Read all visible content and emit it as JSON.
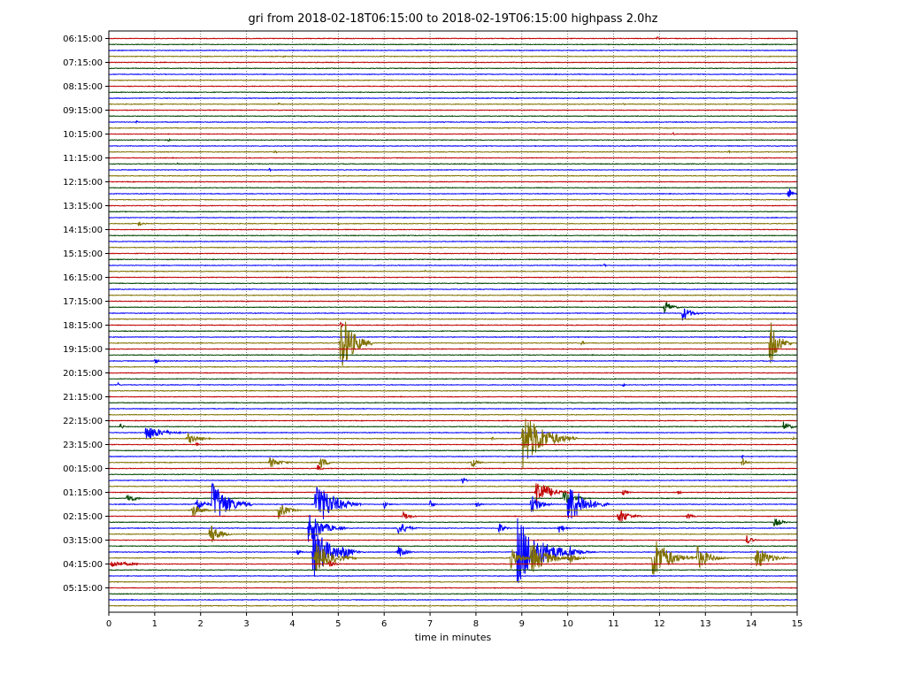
{
  "chart_data": {
    "type": "line",
    "title": "gri from 2018-02-18T06:15:00 to 2018-02-19T06:15:00 highpass 2.0hz",
    "xlabel": "time in minutes",
    "ylabel": "",
    "xlim": [
      0,
      15
    ],
    "x_ticks": [
      "0",
      "1",
      "2",
      "3",
      "4",
      "5",
      "6",
      "7",
      "8",
      "9",
      "10",
      "11",
      "12",
      "13",
      "14",
      "15"
    ],
    "y_tick_labels": [
      "06:15:00",
      "07:15:00",
      "08:15:00",
      "09:15:00",
      "10:15:00",
      "11:15:00",
      "12:15:00",
      "13:15:00",
      "14:15:00",
      "15:15:00",
      "16:15:00",
      "17:15:00",
      "18:15:00",
      "19:15:00",
      "20:15:00",
      "21:15:00",
      "22:15:00",
      "23:15:00",
      "00:15:00",
      "01:15:00",
      "02:15:00",
      "03:15:00",
      "04:15:00",
      "05:15:00"
    ],
    "trace_count": 96,
    "trace_minutes": 15,
    "vertical_grid": "dotted at each minute",
    "trace_colors": [
      "#c00000",
      "#004400",
      "#0000ff",
      "#807000"
    ],
    "events": [
      {
        "trace": 0,
        "minute": 11.95,
        "amp": 3,
        "dur": 0.08
      },
      {
        "trace": 3,
        "minute": 3.8,
        "amp": 2,
        "dur": 0.1
      },
      {
        "trace": 11,
        "minute": 3.7,
        "amp": 2,
        "dur": 0.1
      },
      {
        "trace": 11,
        "minute": 11.2,
        "amp": 2,
        "dur": 0.1
      },
      {
        "trace": 14,
        "minute": 0.6,
        "amp": 2,
        "dur": 0.1
      },
      {
        "trace": 16,
        "minute": 12.3,
        "amp": 2,
        "dur": 0.1
      },
      {
        "trace": 17,
        "minute": 0.7,
        "amp": 2,
        "dur": 0.1
      },
      {
        "trace": 17,
        "minute": 1.3,
        "amp": 2,
        "dur": 0.1
      },
      {
        "trace": 19,
        "minute": 3.6,
        "amp": 3,
        "dur": 0.15
      },
      {
        "trace": 19,
        "minute": 13.5,
        "amp": 2,
        "dur": 0.1
      },
      {
        "trace": 21,
        "minute": 1.5,
        "amp": 2,
        "dur": 0.1
      },
      {
        "trace": 22,
        "minute": 3.5,
        "amp": 2,
        "dur": 0.1
      },
      {
        "trace": 26,
        "minute": 14.8,
        "amp": 10,
        "dur": 0.2
      },
      {
        "trace": 31,
        "minute": 0.65,
        "amp": 4,
        "dur": 0.25
      },
      {
        "trace": 31,
        "minute": 5,
        "amp": 2,
        "dur": 0.1
      },
      {
        "trace": 38,
        "minute": 10.8,
        "amp": 2,
        "dur": 0.1
      },
      {
        "trace": 39,
        "minute": 6.9,
        "amp": 2,
        "dur": 0.1
      },
      {
        "trace": 45,
        "minute": 12.1,
        "amp": 9,
        "dur": 0.4
      },
      {
        "trace": 46,
        "minute": 12.5,
        "amp": 9,
        "dur": 0.5
      },
      {
        "trace": 48,
        "minute": 5.05,
        "amp": 5,
        "dur": 0.1
      },
      {
        "trace": 51,
        "minute": 5.05,
        "amp": 40,
        "dur": 0.7
      },
      {
        "trace": 51,
        "minute": 14.4,
        "amp": 28,
        "dur": 0.5
      },
      {
        "trace": 51,
        "minute": 10.3,
        "amp": 3,
        "dur": 0.15
      },
      {
        "trace": 54,
        "minute": 1.0,
        "amp": 3,
        "dur": 0.2
      },
      {
        "trace": 58,
        "minute": 0.2,
        "amp": 3,
        "dur": 0.1
      },
      {
        "trace": 58,
        "minute": 11.2,
        "amp": 3,
        "dur": 0.1
      },
      {
        "trace": 65,
        "minute": 0.25,
        "amp": 5,
        "dur": 0.15
      },
      {
        "trace": 65,
        "minute": 14.7,
        "amp": 6,
        "dur": 0.4
      },
      {
        "trace": 66,
        "minute": 0.8,
        "amp": 10,
        "dur": 0.9
      },
      {
        "trace": 67,
        "minute": 1.7,
        "amp": 7,
        "dur": 0.6
      },
      {
        "trace": 67,
        "minute": 9.0,
        "amp": 36,
        "dur": 1.2
      },
      {
        "trace": 67,
        "minute": 8.35,
        "amp": 3,
        "dur": 0.1
      },
      {
        "trace": 67,
        "minute": 14.9,
        "amp": 3,
        "dur": 0.1
      },
      {
        "trace": 68,
        "minute": 1.9,
        "amp": 3,
        "dur": 0.15
      },
      {
        "trace": 70,
        "minute": 13.8,
        "amp": 3,
        "dur": 0.1
      },
      {
        "trace": 71,
        "minute": 3.5,
        "amp": 7,
        "dur": 0.6
      },
      {
        "trace": 71,
        "minute": 4.6,
        "amp": 8,
        "dur": 0.4
      },
      {
        "trace": 71,
        "minute": 7.9,
        "amp": 7,
        "dur": 0.3
      },
      {
        "trace": 71,
        "minute": 13.8,
        "amp": 7,
        "dur": 0.2
      },
      {
        "trace": 72,
        "minute": 4.55,
        "amp": 5,
        "dur": 0.2
      },
      {
        "trace": 74,
        "minute": 7.7,
        "amp": 5,
        "dur": 0.2
      },
      {
        "trace": 76,
        "minute": 9.3,
        "amp": 18,
        "dur": 0.8
      },
      {
        "trace": 76,
        "minute": 11.2,
        "amp": 4,
        "dur": 0.3
      },
      {
        "trace": 76,
        "minute": 12.4,
        "amp": 3,
        "dur": 0.2
      },
      {
        "trace": 77,
        "minute": 0.4,
        "amp": 7,
        "dur": 0.4
      },
      {
        "trace": 77,
        "minute": 9.9,
        "amp": 10,
        "dur": 0.6
      },
      {
        "trace": 78,
        "minute": 2.25,
        "amp": 28,
        "dur": 0.9
      },
      {
        "trace": 78,
        "minute": 4.5,
        "amp": 30,
        "dur": 1.0
      },
      {
        "trace": 78,
        "minute": 1.9,
        "amp": 10,
        "dur": 0.4
      },
      {
        "trace": 78,
        "minute": 9.2,
        "amp": 14,
        "dur": 0.5
      },
      {
        "trace": 78,
        "minute": 10.0,
        "amp": 28,
        "dur": 0.9
      },
      {
        "trace": 78,
        "minute": 6.0,
        "amp": 5,
        "dur": 0.2
      },
      {
        "trace": 78,
        "minute": 7.0,
        "amp": 5,
        "dur": 0.2
      },
      {
        "trace": 78,
        "minute": 8.0,
        "amp": 5,
        "dur": 0.2
      },
      {
        "trace": 79,
        "minute": 1.8,
        "amp": 9,
        "dur": 0.5
      },
      {
        "trace": 79,
        "minute": 3.7,
        "amp": 10,
        "dur": 0.5
      },
      {
        "trace": 80,
        "minute": 11.1,
        "amp": 10,
        "dur": 0.6
      },
      {
        "trace": 80,
        "minute": 6.4,
        "amp": 6,
        "dur": 0.4
      },
      {
        "trace": 80,
        "minute": 12.6,
        "amp": 4,
        "dur": 0.3
      },
      {
        "trace": 81,
        "minute": 14.5,
        "amp": 6,
        "dur": 0.4
      },
      {
        "trace": 82,
        "minute": 4.35,
        "amp": 20,
        "dur": 0.8
      },
      {
        "trace": 82,
        "minute": 6.3,
        "amp": 9,
        "dur": 0.5
      },
      {
        "trace": 82,
        "minute": 8.5,
        "amp": 7,
        "dur": 0.3
      },
      {
        "trace": 82,
        "minute": 9.8,
        "amp": 7,
        "dur": 0.3
      },
      {
        "trace": 83,
        "minute": 2.2,
        "amp": 14,
        "dur": 0.5
      },
      {
        "trace": 84,
        "minute": 13.9,
        "amp": 6,
        "dur": 0.3
      },
      {
        "trace": 86,
        "minute": 4.45,
        "amp": 30,
        "dur": 1.0
      },
      {
        "trace": 86,
        "minute": 5.1,
        "amp": 10,
        "dur": 0.5
      },
      {
        "trace": 86,
        "minute": 8.9,
        "amp": 40,
        "dur": 1.4
      },
      {
        "trace": 86,
        "minute": 10.0,
        "amp": 10,
        "dur": 0.6
      },
      {
        "trace": 86,
        "minute": 6.3,
        "amp": 8,
        "dur": 0.4
      },
      {
        "trace": 86,
        "minute": 4.1,
        "amp": 5,
        "dur": 0.2
      },
      {
        "trace": 87,
        "minute": 11.85,
        "amp": 28,
        "dur": 0.9
      },
      {
        "trace": 87,
        "minute": 12.8,
        "amp": 16,
        "dur": 0.7
      },
      {
        "trace": 87,
        "minute": 14.1,
        "amp": 16,
        "dur": 0.7
      },
      {
        "trace": 87,
        "minute": 4.5,
        "amp": 18,
        "dur": 0.9
      },
      {
        "trace": 87,
        "minute": 9.2,
        "amp": 20,
        "dur": 0.9
      },
      {
        "trace": 87,
        "minute": 8.75,
        "amp": 12,
        "dur": 0.6
      },
      {
        "trace": 87,
        "minute": 10.0,
        "amp": 8,
        "dur": 0.5
      },
      {
        "trace": 88,
        "minute": 0.05,
        "amp": 4,
        "dur": 1.1
      },
      {
        "trace": 88,
        "minute": 4.8,
        "amp": 6,
        "dur": 0.3
      }
    ]
  }
}
